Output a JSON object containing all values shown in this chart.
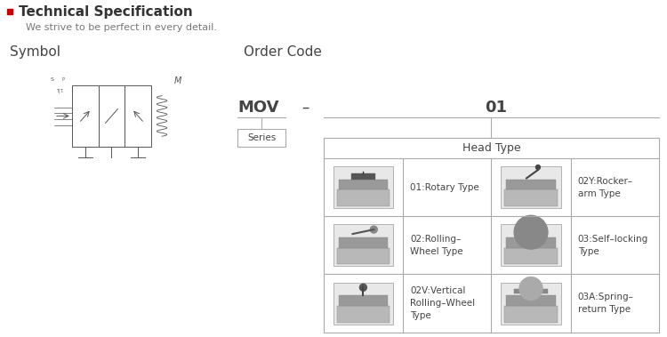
{
  "title": "Technical Specification",
  "subtitle": "We strive to be perfect in every detail.",
  "title_bullet_color": "#cc0000",
  "title_color": "#333333",
  "subtitle_color": "#777777",
  "symbol_label": "Symbol",
  "order_code_label": "Order Code",
  "mov_label": "MOV",
  "dash_label": "–",
  "code_num_label": "01",
  "series_label": "Series",
  "head_type_label": "Head Type",
  "bg_color": "#ffffff",
  "border_color": "#aaaaaa",
  "text_color": "#444444",
  "icon_color": "#cccccc",
  "items": [
    [
      0,
      0,
      "01:Rotary Type"
    ],
    [
      1,
      0,
      "02:Rolling–\nWheel Type"
    ],
    [
      2,
      0,
      "02V:Vertical\nRolling–Wheel\nType"
    ],
    [
      0,
      1,
      "02Y:Rocker–\narm Type"
    ],
    [
      1,
      1,
      "03:Self–locking\nType"
    ],
    [
      2,
      1,
      "03A:Spring–\nreturn Type"
    ]
  ]
}
